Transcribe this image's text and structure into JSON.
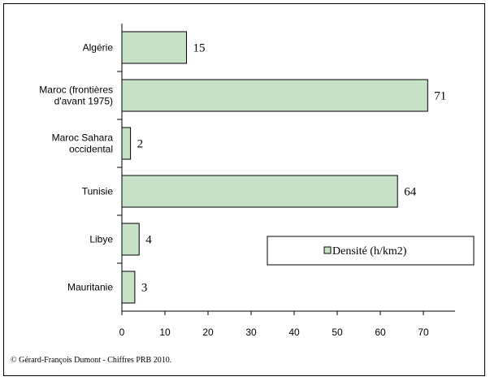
{
  "chart_data": {
    "type": "bar",
    "orientation": "horizontal",
    "categories": [
      [
        "Algérie"
      ],
      [
        "Maroc (frontières",
        "d'avant 1975)"
      ],
      [
        "Maroc Sahara",
        "occidental"
      ],
      [
        "Tunisie"
      ],
      [
        "Libye"
      ],
      [
        "Mauritanie"
      ]
    ],
    "series": [
      {
        "name": "Densité (h/km2)",
        "values": [
          15,
          71,
          2,
          64,
          4,
          3
        ]
      }
    ],
    "data_labels": [
      "15",
      "71",
      "2",
      "64",
      "4",
      "3"
    ],
    "xlim": [
      0,
      79
    ],
    "xticks": [
      0,
      10,
      20,
      30,
      40,
      50,
      60,
      70
    ],
    "grid": false,
    "legend_position": "right",
    "bar_color": "#c6e3c8",
    "bar_stroke": "#000000"
  },
  "source": "© Gérard-François Dumont - Chiffres PRB 2010."
}
